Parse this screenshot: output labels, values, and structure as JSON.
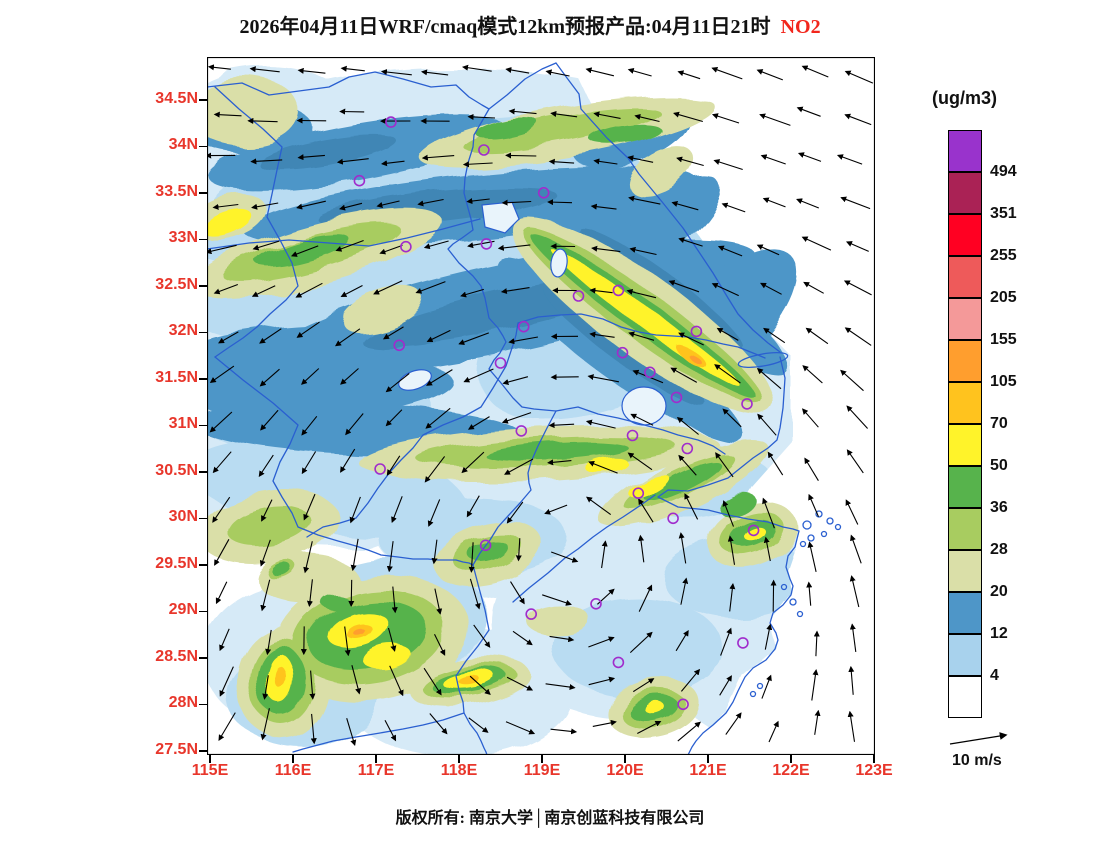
{
  "title": {
    "main": "2026年04月11日WRF/cmaq模式12km预报产品:04月11日21时",
    "species": "NO2"
  },
  "axes": {
    "lat_labels": [
      "34.5N",
      "34N",
      "33.5N",
      "33N",
      "32.5N",
      "32N",
      "31.5N",
      "31N",
      "30.5N",
      "30N",
      "29.5N",
      "29N",
      "28.5N",
      "28N",
      "27.5N"
    ],
    "lon_labels": [
      "115E",
      "116E",
      "117E",
      "118E",
      "119E",
      "120E",
      "121E",
      "122E",
      "123E"
    ]
  },
  "colorbar": {
    "unit": "(ug/m3)",
    "labels_top_to_bottom": [
      "494",
      "351",
      "255",
      "205",
      "155",
      "105",
      "70",
      "50",
      "36",
      "28",
      "20",
      "12",
      "4"
    ],
    "colors_top_to_bottom": [
      "#9933cc",
      "#aa2255",
      "#ff0022",
      "#ee5a5a",
      "#f49999",
      "#ff9e2e",
      "#ffc31e",
      "#fff32a",
      "#57b34c",
      "#a8cc60",
      "#dadfa8",
      "#4e96c8",
      "#a8d2ed",
      "#ffffff"
    ]
  },
  "wind_legend": {
    "label": "10 m/s"
  },
  "footer": {
    "text": "版权所有: 南京大学│南京创蓝科技有限公司"
  },
  "chart_data": {
    "type": "heatmap",
    "subtype": "filled-contour-map-with-wind-vectors",
    "title": "2026年04月11日WRF/cmaq模式12km预报产品:04月11日21时 NO2",
    "variable": "NO2",
    "unit": "ug/m3",
    "model": "WRF/cmaq",
    "resolution": "12km",
    "forecast_date": "2026年04月11日",
    "valid_time": "04月11日21时",
    "lon_range_deg_e": [
      115,
      123.3
    ],
    "lat_range_deg_n": [
      27.5,
      35.0
    ],
    "lon_ticks": [
      115,
      116,
      117,
      118,
      119,
      120,
      121,
      122,
      123
    ],
    "lat_ticks": [
      27.5,
      28,
      28.5,
      29,
      29.5,
      30,
      30.5,
      31,
      31.5,
      32,
      32.5,
      33,
      33.5,
      34,
      34.5
    ],
    "contour_levels_ug_m3": [
      4,
      12,
      20,
      28,
      36,
      50,
      70,
      105,
      155,
      205,
      255,
      351,
      494
    ],
    "band_colors_low_to_high": [
      "#ffffff",
      "#a8d2ed",
      "#4e96c8",
      "#dadfa8",
      "#a8cc60",
      "#57b34c",
      "#fff32a",
      "#ffc31e",
      "#ff9e2e",
      "#f49999",
      "#ee5a5a",
      "#ff0022",
      "#aa2255",
      "#9933cc"
    ],
    "wind_reference_mps": 10,
    "wind_pattern": "Easterly flow (arrows pointing west) over the northern half and offshore; cyclonic turning centered near 119.5E/29.8N with southward flow in the far southwest and northeastward flow along the southeast coast.",
    "high_concentration_features": [
      {
        "area": "NW-SE ridge from ~119E,33N to ~121.4E,31.5N (south Jiangsu / Shanghai corridor)",
        "max_band_ug_m3": "70-155"
      },
      {
        "area": "Cluster near 116.8-117.3E, 28.3-29.0N",
        "max_band_ug_m3": "70-155"
      },
      {
        "area": "Ridge near 117.9-118.4E, ~28.2N",
        "max_band_ug_m3": "70-105"
      },
      {
        "area": "Band along 30.3-31.0N from 117E to 121E with yellow cores near 119.8-120.4E",
        "max_band_ug_m3": "50-105"
      },
      {
        "area": "Spot near 115.7-116.1E, 27.9-28.4N",
        "max_band_ug_m3": "70-105"
      },
      {
        "area": "Coastal blob near 120.2-120.5E, ~28N",
        "max_band_ug_m3": "36-70"
      }
    ],
    "background_bands": "Broad 12-20 ug/m3 blue bands across 31.5-34.5N; mostly below 12 (white / pale blue) over the sea and the southern interior",
    "city_markers_lon_lat": [
      [
        117.18,
        34.26
      ],
      [
        118.3,
        33.96
      ],
      [
        116.8,
        33.63
      ],
      [
        119.02,
        33.5
      ],
      [
        118.33,
        32.95
      ],
      [
        117.36,
        32.92
      ],
      [
        118.78,
        32.06
      ],
      [
        119.44,
        32.39
      ],
      [
        119.92,
        32.45
      ],
      [
        120.86,
        32.01
      ],
      [
        117.28,
        31.86
      ],
      [
        118.5,
        31.67
      ],
      [
        119.97,
        31.78
      ],
      [
        120.3,
        31.57
      ],
      [
        120.62,
        31.3
      ],
      [
        121.47,
        31.23
      ],
      [
        120.09,
        30.89
      ],
      [
        120.75,
        30.75
      ],
      [
        118.75,
        30.94
      ],
      [
        120.16,
        30.27
      ],
      [
        120.58,
        30.0
      ],
      [
        121.55,
        29.87
      ],
      [
        117.05,
        30.53
      ],
      [
        118.32,
        29.71
      ],
      [
        118.87,
        28.97
      ],
      [
        119.65,
        29.08
      ],
      [
        119.92,
        28.45
      ],
      [
        120.7,
        28.0
      ],
      [
        121.42,
        28.66
      ]
    ]
  }
}
